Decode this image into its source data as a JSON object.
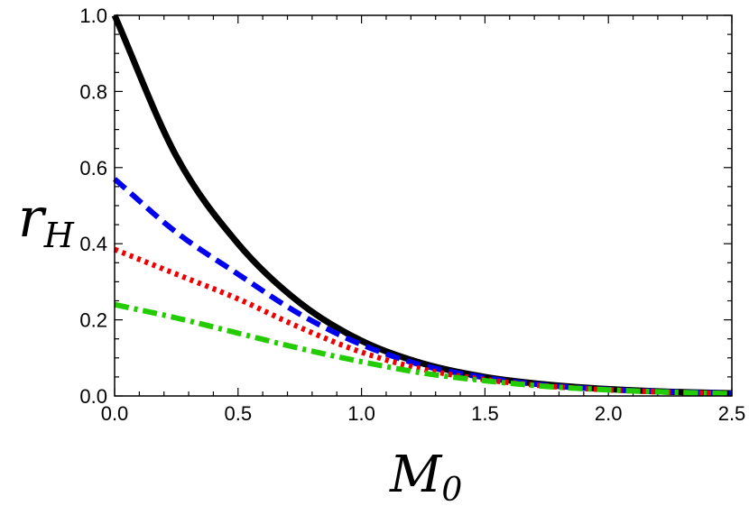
{
  "chart_data": {
    "type": "line",
    "title": "",
    "xlabel": "M",
    "xlabel_sub": "0",
    "ylabel": "r",
    "ylabel_sub": "H",
    "xlim": [
      0,
      2.5
    ],
    "ylim": [
      0,
      1.0
    ],
    "x_ticks": [
      0.0,
      0.5,
      1.0,
      1.5,
      2.0,
      2.5
    ],
    "x_tick_labels": [
      "0.0",
      "0.5",
      "1.0",
      "1.5",
      "2.0",
      "2.5"
    ],
    "y_ticks": [
      0.0,
      0.2,
      0.4,
      0.6,
      0.8,
      1.0
    ],
    "y_tick_labels": [
      "0.0",
      "0.2",
      "0.4",
      "0.6",
      "0.8",
      "1.0"
    ],
    "grid": false,
    "x": [
      0.0,
      0.25,
      0.5,
      0.75,
      1.0,
      1.25,
      1.5,
      1.75,
      2.0,
      2.25,
      2.5
    ],
    "series": [
      {
        "name": "solid",
        "style": "solid",
        "color": "#000000",
        "values": [
          1.0,
          0.63,
          0.4,
          0.245,
          0.145,
          0.085,
          0.05,
          0.03,
          0.018,
          0.011,
          0.007
        ]
      },
      {
        "name": "dashed",
        "style": "dashed",
        "color": "#0000ee",
        "values": [
          0.57,
          0.43,
          0.32,
          0.215,
          0.135,
          0.08,
          0.048,
          0.028,
          0.017,
          0.011,
          0.007
        ]
      },
      {
        "name": "dotted",
        "style": "dotted",
        "color": "#ee0000",
        "values": [
          0.385,
          0.32,
          0.255,
          0.18,
          0.115,
          0.07,
          0.043,
          0.026,
          0.016,
          0.01,
          0.006
        ]
      },
      {
        "name": "dash-dot",
        "style": "dashdot",
        "color": "#22cc00",
        "values": [
          0.24,
          0.205,
          0.165,
          0.125,
          0.09,
          0.06,
          0.04,
          0.025,
          0.016,
          0.01,
          0.006
        ]
      }
    ]
  }
}
